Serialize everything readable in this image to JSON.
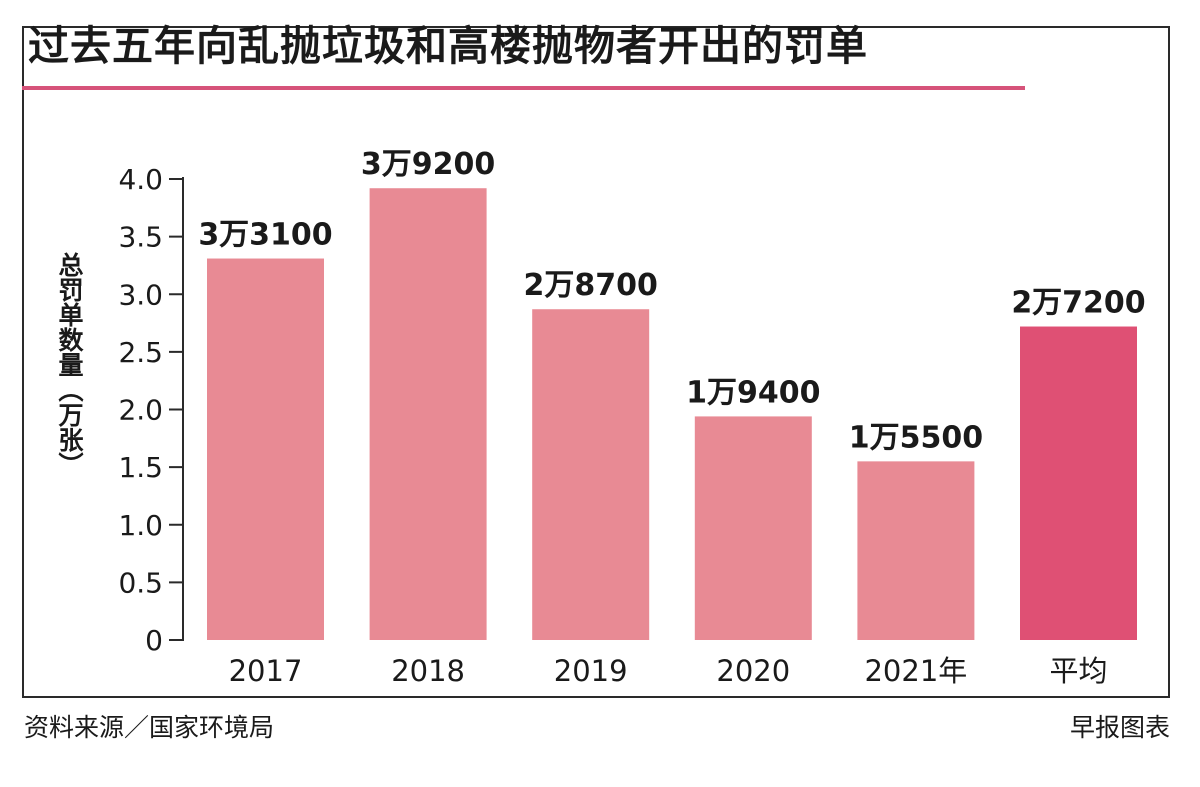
{
  "chart_data": {
    "type": "bar",
    "title": "过去五年向乱抛垃圾和高楼抛物者开出的罚单",
    "ylabel": "总罚单数量（万张）",
    "xlabel": "",
    "categories": [
      "2017",
      "2018",
      "2019",
      "2020",
      "2021年",
      "平均"
    ],
    "values": [
      3.31,
      3.92,
      2.87,
      1.94,
      1.55,
      2.72
    ],
    "data_labels": [
      "3万3100",
      "3万9200",
      "2万8700",
      "1万9400",
      "1万5500",
      "2万7200"
    ],
    "ylim": [
      0,
      4.0
    ],
    "yticks": [
      "0",
      "0.5",
      "1.0",
      "1.5",
      "2.0",
      "2.5",
      "3.0",
      "3.5",
      "4.0"
    ],
    "grid": false,
    "colors": {
      "bars": [
        "#e88a94",
        "#e88a94",
        "#e88a94",
        "#e88a94",
        "#e88a94",
        "#df5074"
      ],
      "accent_rule": "#d6537a",
      "axis": "#2a2a2a"
    }
  },
  "footer": {
    "source": "资料来源／国家环境局",
    "credit": "早报图表"
  }
}
